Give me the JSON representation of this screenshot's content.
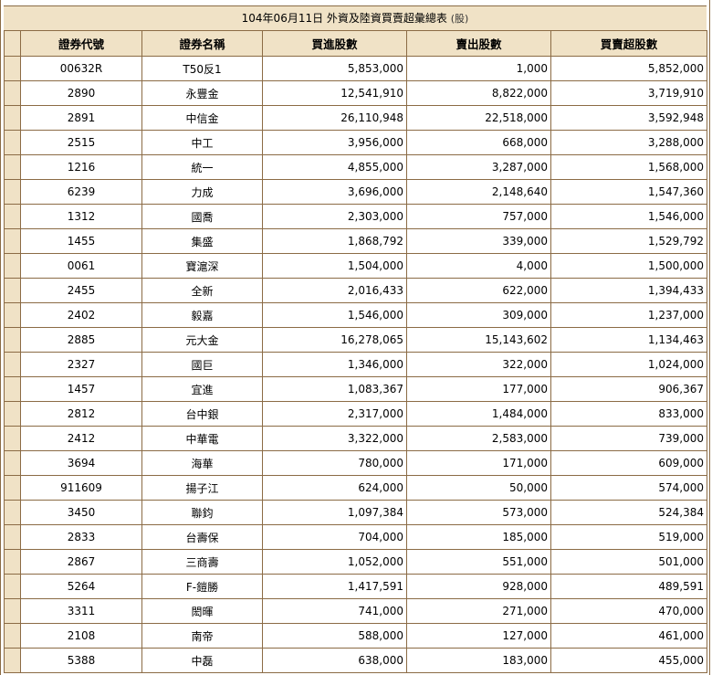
{
  "title": {
    "text": "104年06月11日 外資及陸資買賣超彙總表",
    "unit": "(股)"
  },
  "headers": [
    "證券代號",
    "證券名稱",
    "買進股數",
    "賣出股數",
    "買賣超股數"
  ],
  "rows": [
    [
      "00632R",
      "T50反1",
      "5,853,000",
      "1,000",
      "5,852,000"
    ],
    [
      "2890",
      "永豐金",
      "12,541,910",
      "8,822,000",
      "3,719,910"
    ],
    [
      "2891",
      "中信金",
      "26,110,948",
      "22,518,000",
      "3,592,948"
    ],
    [
      "2515",
      "中工",
      "3,956,000",
      "668,000",
      "3,288,000"
    ],
    [
      "1216",
      "統一",
      "4,855,000",
      "3,287,000",
      "1,568,000"
    ],
    [
      "6239",
      "力成",
      "3,696,000",
      "2,148,640",
      "1,547,360"
    ],
    [
      "1312",
      "國喬",
      "2,303,000",
      "757,000",
      "1,546,000"
    ],
    [
      "1455",
      "集盛",
      "1,868,792",
      "339,000",
      "1,529,792"
    ],
    [
      "0061",
      "寶滬深",
      "1,504,000",
      "4,000",
      "1,500,000"
    ],
    [
      "2455",
      "全新",
      "2,016,433",
      "622,000",
      "1,394,433"
    ],
    [
      "2402",
      "毅嘉",
      "1,546,000",
      "309,000",
      "1,237,000"
    ],
    [
      "2885",
      "元大金",
      "16,278,065",
      "15,143,602",
      "1,134,463"
    ],
    [
      "2327",
      "國巨",
      "1,346,000",
      "322,000",
      "1,024,000"
    ],
    [
      "1457",
      "宜進",
      "1,083,367",
      "177,000",
      "906,367"
    ],
    [
      "2812",
      "台中銀",
      "2,317,000",
      "1,484,000",
      "833,000"
    ],
    [
      "2412",
      "中華電",
      "3,322,000",
      "2,583,000",
      "739,000"
    ],
    [
      "3694",
      "海華",
      "780,000",
      "171,000",
      "609,000"
    ],
    [
      "911609",
      "揚子江",
      "624,000",
      "50,000",
      "574,000"
    ],
    [
      "3450",
      "聯鈞",
      "1,097,384",
      "573,000",
      "524,384"
    ],
    [
      "2833",
      "台壽保",
      "704,000",
      "185,000",
      "519,000"
    ],
    [
      "2867",
      "三商壽",
      "1,052,000",
      "551,000",
      "501,000"
    ],
    [
      "5264",
      "F-鎧勝",
      "1,417,591",
      "928,000",
      "489,591"
    ],
    [
      "3311",
      "閎暉",
      "741,000",
      "271,000",
      "470,000"
    ],
    [
      "2108",
      "南帝",
      "588,000",
      "127,000",
      "461,000"
    ],
    [
      "5388",
      "中磊",
      "638,000",
      "183,000",
      "455,000"
    ]
  ]
}
